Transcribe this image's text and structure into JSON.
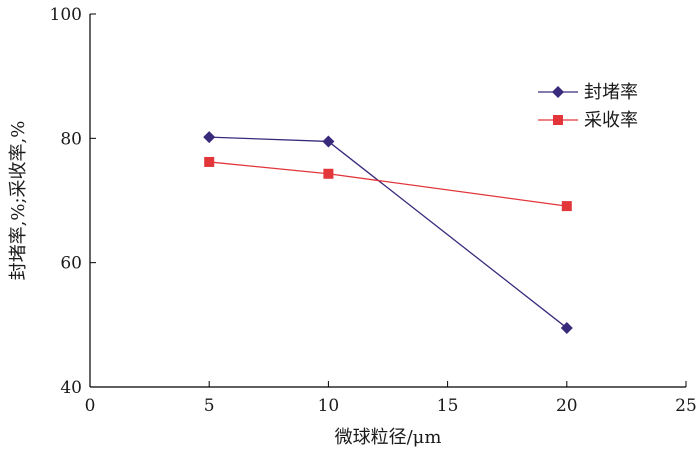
{
  "chart_data": {
    "type": "line",
    "title": "",
    "xlabel": "微球粒径/μm",
    "ylabel": "封堵率,%;采收率,%",
    "xlim": [
      0,
      25
    ],
    "ylim": [
      40,
      100
    ],
    "xticks": [
      0,
      5,
      10,
      15,
      20,
      25
    ],
    "yticks": [
      40,
      60,
      80,
      100
    ],
    "grid": false,
    "legend_position": "top-right",
    "series": [
      {
        "name": "封堵率",
        "marker": "diamond",
        "color": "#3a2a7c",
        "x": [
          5,
          10,
          20
        ],
        "y": [
          80.2,
          79.5,
          49.5
        ]
      },
      {
        "name": "采收率",
        "marker": "square",
        "color": "#e2363a",
        "x": [
          5,
          10,
          20
        ],
        "y": [
          76.2,
          74.3,
          69.1
        ]
      }
    ]
  }
}
